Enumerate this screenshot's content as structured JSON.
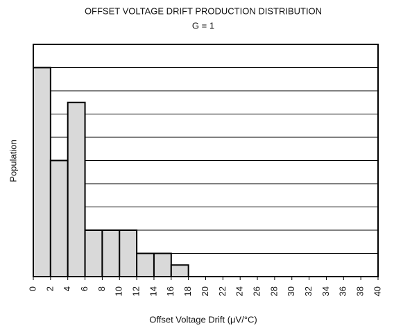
{
  "chart_data": {
    "type": "histogram",
    "title": "OFFSET VOLTAGE DRIFT PRODUCTION DISTRIBUTION",
    "subtitle": "G = 1",
    "xlabel": "Offset Voltage Drift (μV/°C)",
    "ylabel": "Population",
    "bins": [
      0,
      2,
      4,
      6,
      8,
      10,
      12,
      14,
      16,
      18
    ],
    "values": [
      9,
      5,
      7.5,
      2,
      2,
      2,
      1,
      1,
      0.5
    ],
    "color": "#d9d9d9",
    "xlim": [
      0,
      40
    ],
    "xticks": [
      0,
      2,
      4,
      6,
      8,
      10,
      12,
      14,
      16,
      18,
      20,
      22,
      24,
      26,
      28,
      30,
      32,
      34,
      36,
      38,
      40
    ],
    "ylim": [
      0,
      10
    ],
    "yticks": [
      0,
      1,
      2,
      3,
      4,
      5,
      6,
      7,
      8,
      9,
      10
    ],
    "grid": true
  }
}
